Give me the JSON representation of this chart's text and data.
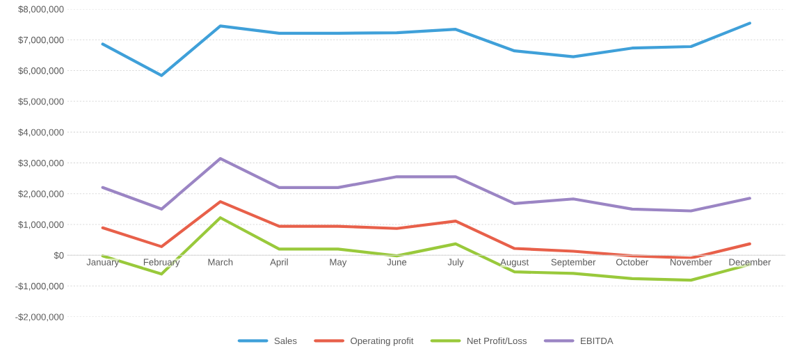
{
  "chart_data": {
    "type": "line",
    "categories": [
      "January",
      "February",
      "March",
      "April",
      "May",
      "June",
      "July",
      "August",
      "September",
      "October",
      "November",
      "December"
    ],
    "series": [
      {
        "name": "Sales",
        "color": "#3fa0d9",
        "values": [
          6860000,
          5840000,
          7450000,
          7210000,
          7210000,
          7230000,
          7340000,
          6640000,
          6450000,
          6730000,
          6780000,
          7540000
        ]
      },
      {
        "name": "Operating profit",
        "color": "#e8604a",
        "values": [
          890000,
          280000,
          1740000,
          940000,
          940000,
          870000,
          1110000,
          220000,
          130000,
          -20000,
          -90000,
          370000
        ]
      },
      {
        "name": "Net Profit/Loss",
        "color": "#99c93b",
        "values": [
          -20000,
          -610000,
          1220000,
          200000,
          200000,
          -20000,
          370000,
          -540000,
          -590000,
          -760000,
          -810000,
          -300000
        ]
      },
      {
        "name": "EBITDA",
        "color": "#9b85c4",
        "values": [
          2200000,
          1500000,
          3140000,
          2200000,
          2200000,
          2550000,
          2550000,
          1680000,
          1830000,
          1500000,
          1440000,
          1850000
        ]
      }
    ],
    "ylim": [
      -2000000,
      8000000
    ],
    "yticks": [
      {
        "value": -2000000,
        "label": "-$2,000,000"
      },
      {
        "value": -1000000,
        "label": "-$1,000,000"
      },
      {
        "value": 0,
        "label": "$0"
      },
      {
        "value": 1000000,
        "label": "$1,000,000"
      },
      {
        "value": 2000000,
        "label": "$2,000,000"
      },
      {
        "value": 3000000,
        "label": "$3,000,000"
      },
      {
        "value": 4000000,
        "label": "$4,000,000"
      },
      {
        "value": 5000000,
        "label": "$5,000,000"
      },
      {
        "value": 6000000,
        "label": "$6,000,000"
      },
      {
        "value": 7000000,
        "label": "$7,000,000"
      },
      {
        "value": 8000000,
        "label": "$8,000,000"
      }
    ],
    "grid": "y",
    "legend": "bottom",
    "marker": "none",
    "line_style": "solid"
  }
}
